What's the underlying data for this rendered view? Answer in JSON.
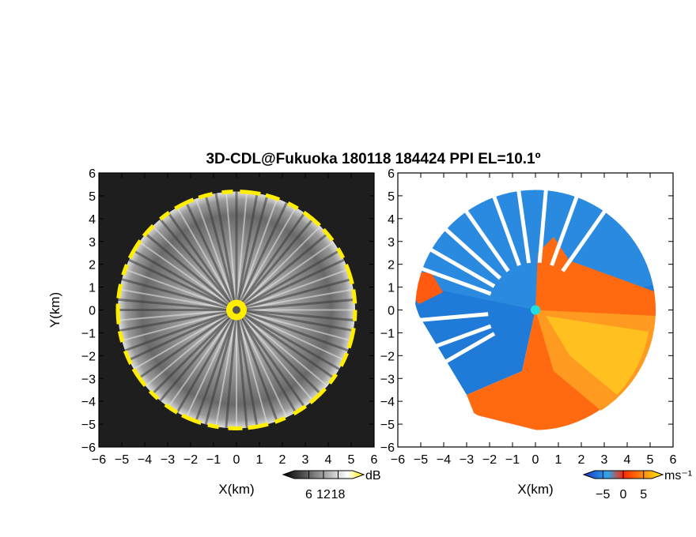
{
  "figure": {
    "title": "3D-CDL@Fukuoka 180118 184424 PPI EL=10.1º"
  },
  "chart_data": [
    {
      "type": "heatmap",
      "panel": "left",
      "quantity": "dB",
      "xlabel": "X(km)",
      "ylabel": "Y(km)",
      "xlim": [
        -6,
        6
      ],
      "ylim": [
        -6,
        6
      ],
      "xticks": [
        "−6",
        "−5",
        "−4",
        "−3",
        "−2",
        "−1",
        "0",
        "1",
        "2",
        "3",
        "4",
        "5",
        "6"
      ],
      "yticks": [
        "−6",
        "−5",
        "−4",
        "−3",
        "−2",
        "−1",
        "0",
        "1",
        "2",
        "3",
        "4",
        "5",
        "6"
      ],
      "range_edge_km": 5.2,
      "colorbar": {
        "label": "dB",
        "ticks": [
          "6",
          "12",
          "18"
        ],
        "min": 0,
        "max": 24,
        "colors": [
          "#000000",
          "#ffffff",
          "#ffee00"
        ]
      },
      "colors": {
        "background": "#1e1e1e",
        "interior": "#8a8a8a",
        "edge": "#ffee00",
        "center": "#555555"
      }
    },
    {
      "type": "heatmap",
      "panel": "right",
      "quantity": "ms⁻¹",
      "xlabel": "X(km)",
      "ylabel": "",
      "xlim": [
        -6,
        6
      ],
      "ylim": [
        -6,
        6
      ],
      "xticks": [
        "−6",
        "−5",
        "−4",
        "−3",
        "−2",
        "−1",
        "0",
        "1",
        "2",
        "3",
        "4",
        "5",
        "6"
      ],
      "yticks": [
        "−6",
        "−5",
        "−4",
        "−3",
        "−2",
        "−1",
        "0",
        "1",
        "2",
        "3",
        "4",
        "5",
        "6"
      ],
      "range_edge_km": 5.2,
      "colorbar": {
        "label": "ms⁻¹",
        "ticks": [
          "−5",
          "0",
          "5"
        ],
        "min": -7,
        "max": 7,
        "colors": [
          "#2a4fd0",
          "#2aa0f0",
          "#ff3a00",
          "#ffee00"
        ]
      },
      "colors": {
        "background": "#ffffff",
        "negative": "#1f7ad8",
        "positive": "#ff6a10",
        "center": "#1ee0e0"
      }
    }
  ]
}
